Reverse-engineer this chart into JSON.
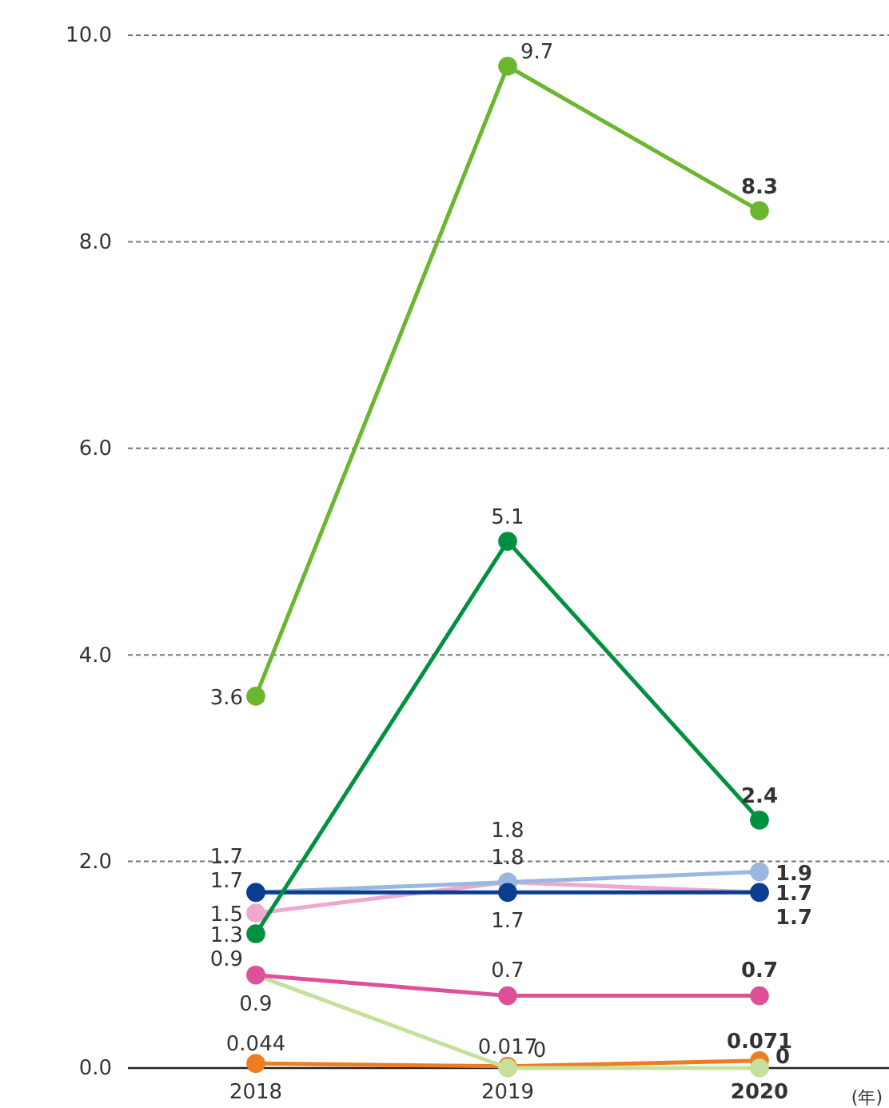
{
  "chart_data": {
    "type": "line",
    "xlabel": "(年)",
    "categories": [
      "2018",
      "2019",
      "2020"
    ],
    "ylim": [
      0,
      10
    ],
    "yticks": [
      {
        "value": 0,
        "label": "0.0"
      },
      {
        "value": 2,
        "label": "2.0"
      },
      {
        "value": 4,
        "label": "4.0"
      },
      {
        "value": 6,
        "label": "6.0"
      },
      {
        "value": 8,
        "label": "8.0"
      },
      {
        "value": 10,
        "label": "10.0"
      }
    ],
    "grid": "y",
    "marker": "circle",
    "line_style": "solid",
    "series": [
      {
        "color": "#ee7d21",
        "values": [
          0.044,
          0.017,
          0.071
        ],
        "value_labels": [
          "0.044",
          "0.017",
          "0.071"
        ]
      },
      {
        "color": "#c5e09a",
        "values": [
          0.9,
          0,
          0
        ],
        "value_labels": [
          "0.9",
          "0",
          "0"
        ]
      },
      {
        "color": "#e0509a",
        "values": [
          0.9,
          0.7,
          0.7
        ],
        "value_labels": [
          "0.9",
          "0.7",
          "0.7"
        ]
      },
      {
        "color": "#f0a8cc",
        "values": [
          1.5,
          1.8,
          1.7
        ],
        "value_labels": [
          "1.5",
          "1.8",
          "1.7"
        ]
      },
      {
        "color": "#9ab7e0",
        "values": [
          1.7,
          1.8,
          1.9
        ],
        "value_labels": [
          "1.7",
          "1.8",
          "1.9"
        ]
      },
      {
        "color": "#0a3d8f",
        "values": [
          1.7,
          1.7,
          1.7
        ],
        "value_labels": [
          "1.7",
          "1.7",
          "1.7"
        ]
      },
      {
        "color": "#009140",
        "values": [
          1.3,
          5.1,
          2.4
        ],
        "value_labels": [
          "1.3",
          "5.1",
          "2.4"
        ]
      },
      {
        "color": "#6ab72f",
        "values": [
          3.6,
          9.7,
          8.3
        ],
        "value_labels": [
          "3.6",
          "9.7",
          "8.3"
        ]
      }
    ]
  }
}
